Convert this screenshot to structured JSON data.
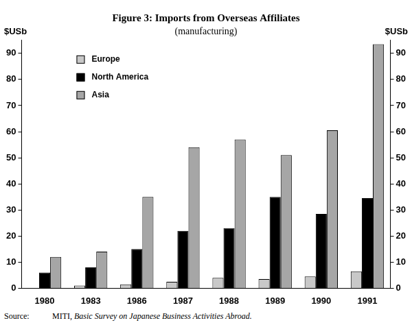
{
  "chart_data": {
    "type": "bar",
    "title": "Figure 3: Imports from Overseas Affiliates",
    "subtitle": "(manufacturing)",
    "y_label": "$USb",
    "y2_label": "$USb",
    "categories": [
      "1980",
      "1983",
      "1986",
      "1987",
      "1988",
      "1989",
      "1990",
      "1991"
    ],
    "series": [
      {
        "name": "Europe",
        "color": "#c8c8c8",
        "values": [
          0,
          1,
          1.5,
          2.5,
          4,
          3.5,
          4.5,
          6.5
        ]
      },
      {
        "name": "North America",
        "color": "#000000",
        "values": [
          6,
          8,
          15,
          22,
          23,
          35,
          28.5,
          34.5
        ]
      },
      {
        "name": "Asia",
        "color": "#a6a6a6",
        "values": [
          12,
          14,
          35,
          54,
          57,
          51,
          60.5,
          93.5
        ]
      }
    ],
    "ylim": [
      0,
      95
    ],
    "yticks": [
      0,
      10,
      20,
      30,
      40,
      50,
      60,
      70,
      80,
      90
    ],
    "y2lim": [
      0,
      95
    ],
    "y2ticks": [
      0,
      10,
      20,
      30,
      40,
      50,
      60,
      70,
      80,
      90
    ],
    "grid": false,
    "legend": "upper left",
    "source": {
      "label": "Source:",
      "publisher": "MITI,",
      "title": "Basic Survey on Japanese Business Activities Abroad."
    }
  }
}
